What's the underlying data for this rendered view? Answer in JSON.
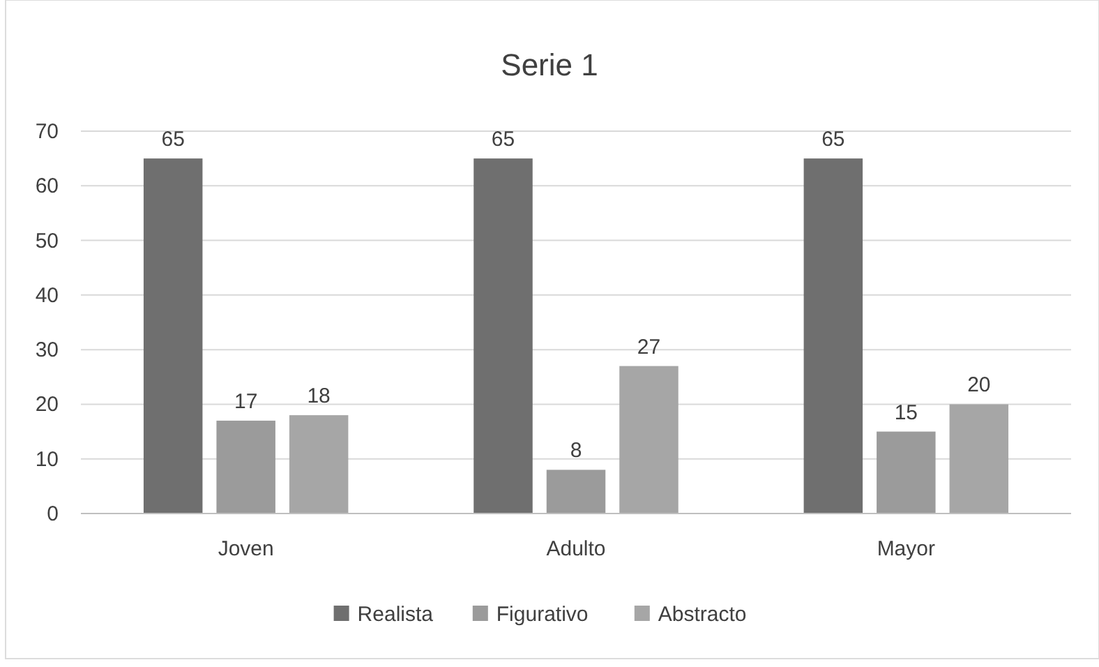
{
  "chart_data": {
    "type": "bar",
    "title": "Serie 1",
    "categories": [
      "Joven",
      "Adulto",
      "Mayor"
    ],
    "series": [
      {
        "name": "Realista",
        "color": "#6f6f6f",
        "values": [
          65,
          65,
          65
        ]
      },
      {
        "name": "Figurativo",
        "color": "#9b9b9b",
        "values": [
          17,
          8,
          15
        ]
      },
      {
        "name": "Abstracto",
        "color": "#a6a6a6",
        "values": [
          18,
          27,
          20
        ]
      }
    ],
    "ylim": [
      0,
      70
    ],
    "yticks": [
      0,
      10,
      20,
      30,
      40,
      50,
      60,
      70
    ],
    "grid": "y",
    "legend": "bottom",
    "data_labels": true
  }
}
